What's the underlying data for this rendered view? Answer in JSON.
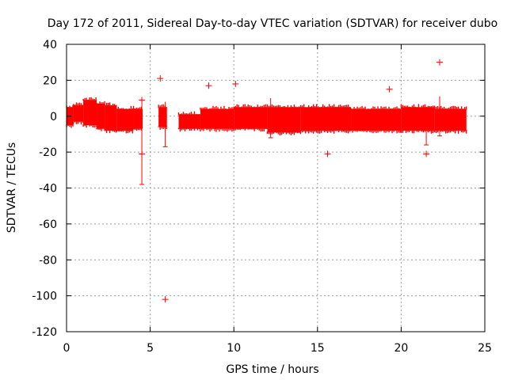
{
  "chart_data": {
    "type": "scatter",
    "title": "Day 172 of 2011, Sidereal Day-to-day VTEC variation (SDTVAR) for receiver dubo",
    "xlabel": "GPS time / hours",
    "ylabel": "SDTVAR / TECUs",
    "xlim": [
      0,
      25
    ],
    "ylim": [
      -120,
      40
    ],
    "x_ticks": [
      0,
      5,
      10,
      15,
      20,
      25
    ],
    "y_ticks": [
      -120,
      -100,
      -80,
      -60,
      -40,
      -20,
      0,
      20,
      40
    ],
    "grid": true,
    "marker": "+",
    "series_color": "#ff0000",
    "bands": [
      {
        "x_start": 0.0,
        "x_end": 0.4,
        "y_top": 5,
        "y_bottom": -5
      },
      {
        "x_start": 0.4,
        "x_end": 1.0,
        "y_top": 6,
        "y_bottom": -3
      },
      {
        "x_start": 1.0,
        "x_end": 1.8,
        "y_top": 9,
        "y_bottom": -5
      },
      {
        "x_start": 1.8,
        "x_end": 2.3,
        "y_top": 7,
        "y_bottom": -7
      },
      {
        "x_start": 2.3,
        "x_end": 3.0,
        "y_top": 6,
        "y_bottom": -8
      },
      {
        "x_start": 3.0,
        "x_end": 4.0,
        "y_top": 4,
        "y_bottom": -8
      },
      {
        "x_start": 4.0,
        "x_end": 4.55,
        "y_top": 4,
        "y_bottom": -7
      },
      {
        "x_start": 5.5,
        "x_end": 6.0,
        "y_top": 5,
        "y_bottom": -6
      },
      {
        "x_start": 6.7,
        "x_end": 8.0,
        "y_top": 1,
        "y_bottom": -7
      },
      {
        "x_start": 8.0,
        "x_end": 10.0,
        "y_top": 4,
        "y_bottom": -7
      },
      {
        "x_start": 10.0,
        "x_end": 12.0,
        "y_top": 5,
        "y_bottom": -7
      },
      {
        "x_start": 12.0,
        "x_end": 14.0,
        "y_top": 5,
        "y_bottom": -9
      },
      {
        "x_start": 14.0,
        "x_end": 17.0,
        "y_top": 5,
        "y_bottom": -8
      },
      {
        "x_start": 17.0,
        "x_end": 20.0,
        "y_top": 4,
        "y_bottom": -8
      },
      {
        "x_start": 20.0,
        "x_end": 22.0,
        "y_top": 5,
        "y_bottom": -8
      },
      {
        "x_start": 22.0,
        "x_end": 23.9,
        "y_top": 4,
        "y_bottom": -8
      }
    ],
    "spikes": [
      {
        "x": 4.5,
        "y_top": 9,
        "y_bottom": -38
      },
      {
        "x": 5.9,
        "y_top": 8,
        "y_bottom": -17
      },
      {
        "x": 12.2,
        "y_top": 10,
        "y_bottom": -12
      },
      {
        "x": 21.5,
        "y_top": 4,
        "y_bottom": -16
      },
      {
        "x": 22.3,
        "y_top": 11,
        "y_bottom": -11
      }
    ],
    "outliers": [
      {
        "x": 4.5,
        "y": 9
      },
      {
        "x": 4.5,
        "y": -21
      },
      {
        "x": 5.6,
        "y": 21
      },
      {
        "x": 5.9,
        "y": -102
      },
      {
        "x": 8.5,
        "y": 17
      },
      {
        "x": 10.1,
        "y": 18
      },
      {
        "x": 15.6,
        "y": -21
      },
      {
        "x": 19.3,
        "y": 15
      },
      {
        "x": 21.5,
        "y": -21
      },
      {
        "x": 22.3,
        "y": 30
      }
    ]
  }
}
